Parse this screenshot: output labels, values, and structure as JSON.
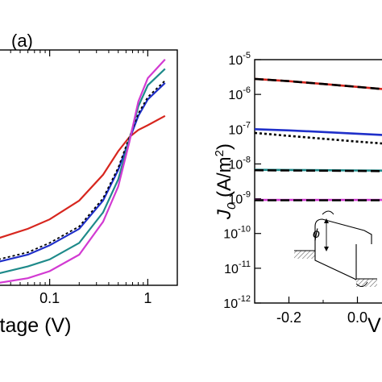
{
  "chart_data": [
    {
      "panel_label": "(a)",
      "type": "line",
      "xscale": "log",
      "xlabel_visible": "ltage (V)",
      "xticks": [
        {
          "value": 0.1,
          "label": "0.1"
        },
        {
          "value": 1,
          "label": "1"
        }
      ],
      "xlim": [
        0.03,
        2
      ],
      "colors": {
        "red": "#d7261e",
        "blue": "#1f2fc9",
        "teal": "#1e8a8a",
        "magenta": "#d23ad2",
        "fit": "#000000"
      },
      "series": [
        {
          "color": "red",
          "style": "solid",
          "x": [
            0.03,
            0.06,
            0.1,
            0.2,
            0.35,
            0.5,
            0.65,
            0.8,
            1.0,
            1.5
          ],
          "y": [
            0.2,
            0.24,
            0.28,
            0.36,
            0.47,
            0.57,
            0.63,
            0.66,
            0.68,
            0.72
          ]
        },
        {
          "color": "blue",
          "style": "solid",
          "x": [
            0.03,
            0.06,
            0.1,
            0.2,
            0.35,
            0.5,
            0.65,
            0.8,
            1.0,
            1.5
          ],
          "y": [
            0.1,
            0.13,
            0.17,
            0.24,
            0.36,
            0.49,
            0.62,
            0.72,
            0.79,
            0.86
          ]
        },
        {
          "color": "fit",
          "style": "dotted",
          "x": [
            0.03,
            0.06,
            0.1,
            0.2,
            0.35,
            0.5,
            0.65,
            0.8,
            1.0,
            1.5
          ],
          "y": [
            0.11,
            0.14,
            0.18,
            0.25,
            0.37,
            0.5,
            0.63,
            0.73,
            0.8,
            0.87
          ]
        },
        {
          "color": "teal",
          "style": "solid",
          "x": [
            0.03,
            0.06,
            0.1,
            0.2,
            0.35,
            0.5,
            0.65,
            0.8,
            1.0,
            1.5
          ],
          "y": [
            0.05,
            0.08,
            0.11,
            0.18,
            0.31,
            0.45,
            0.62,
            0.76,
            0.85,
            0.92
          ]
        },
        {
          "color": "magenta",
          "style": "solid",
          "x": [
            0.03,
            0.06,
            0.1,
            0.2,
            0.35,
            0.5,
            0.65,
            0.8,
            1.0,
            1.5
          ],
          "y": [
            0.01,
            0.03,
            0.06,
            0.13,
            0.27,
            0.42,
            0.61,
            0.78,
            0.88,
            0.96
          ]
        }
      ]
    },
    {
      "type": "line",
      "ylabel": "J0 (A/m2)",
      "ylabel_main": "J",
      "ylabel_sub": "0",
      "ylabel_rest": " (A/m",
      "ylabel_sup": "2",
      "ylabel_close": ")",
      "yscale": "log",
      "ylim": [
        1e-12,
        1e-05
      ],
      "yticks": [
        {
          "base": "10",
          "exp": "-5"
        },
        {
          "base": "10",
          "exp": "-6"
        },
        {
          "base": "10",
          "exp": "-7"
        },
        {
          "base": "10",
          "exp": "-8"
        },
        {
          "base": "10",
          "exp": "-9"
        },
        {
          "base": "10",
          "exp": "-10"
        },
        {
          "base": "10",
          "exp": "-11"
        },
        {
          "base": "10",
          "exp": "-12"
        }
      ],
      "xticks": [
        {
          "value": -0.2,
          "label": "-0.2"
        },
        {
          "value": 0.0,
          "label": "0.0"
        }
      ],
      "xlabel_visible": "V",
      "xlim": [
        -0.3,
        0.1
      ],
      "inset": {
        "symbol": "ϕ"
      },
      "colors": {
        "red": "#d7261e",
        "blue": "#1f2fc9",
        "teal": "#1e8a8a",
        "magenta": "#d23ad2",
        "fit": "#000000"
      },
      "series": [
        {
          "color": "red",
          "style": "solid",
          "x": [
            -0.3,
            -0.2,
            -0.1,
            0.0,
            0.1
          ],
          "y": [
            2.8e-06,
            2.4e-06,
            2e-06,
            1.65e-06,
            1.35e-06
          ]
        },
        {
          "color": "fit",
          "style": "dashed",
          "x": [
            -0.3,
            -0.2,
            -0.1,
            0.0,
            0.1
          ],
          "y": [
            2.8e-06,
            2.4e-06,
            2e-06,
            1.65e-06,
            1.35e-06
          ]
        },
        {
          "color": "blue",
          "style": "solid",
          "x": [
            -0.3,
            -0.2,
            -0.1,
            0.0,
            0.1
          ],
          "y": [
            1e-07,
            9.2e-08,
            8.3e-08,
            7.4e-08,
            6.6e-08
          ]
        },
        {
          "color": "fit",
          "style": "dotted",
          "x": [
            -0.3,
            -0.2,
            -0.1,
            0.0,
            0.1
          ],
          "y": [
            7.8e-08,
            6.4e-08,
            5.3e-08,
            4.4e-08,
            3.7e-08
          ]
        },
        {
          "color": "teal",
          "style": "solid",
          "x": [
            -0.3,
            -0.2,
            -0.1,
            0.0,
            0.1
          ],
          "y": [
            6.8e-09,
            6.7e-09,
            6.6e-09,
            6.5e-09,
            6.4e-09
          ]
        },
        {
          "color": "fit",
          "style": "dashed",
          "x": [
            -0.3,
            -0.2,
            -0.1,
            0.0,
            0.1
          ],
          "y": [
            6.6e-09,
            6.5e-09,
            6.4e-09,
            6.3e-09,
            6.2e-09
          ]
        },
        {
          "color": "magenta",
          "style": "solid",
          "x": [
            -0.3,
            -0.2,
            -0.1,
            0.0,
            0.1
          ],
          "y": [
            9.2e-10,
            9.2e-10,
            9.2e-10,
            9.2e-10,
            9.2e-10
          ]
        },
        {
          "color": "fit",
          "style": "dashed",
          "x": [
            -0.3,
            -0.2,
            -0.1,
            0.0,
            0.1
          ],
          "y": [
            9e-10,
            9e-10,
            9e-10,
            9e-10,
            9e-10
          ]
        }
      ]
    }
  ]
}
